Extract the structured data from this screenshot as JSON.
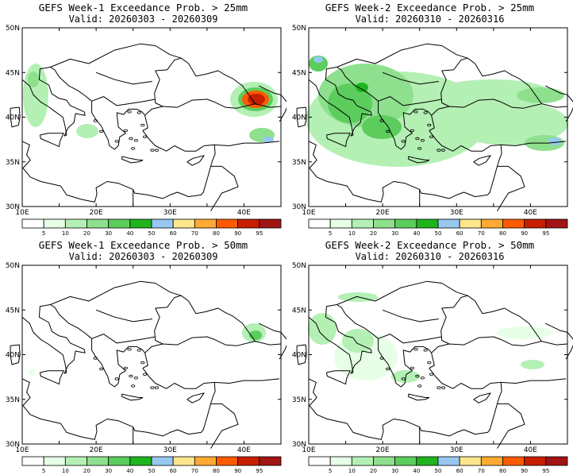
{
  "panels": [
    {
      "title": "GEFS Week-1 Exceedance Prob. > 25mm",
      "valid": "Valid: 20260303 - 20260309"
    },
    {
      "title": "GEFS Week-2 Exceedance Prob. > 25mm",
      "valid": "Valid: 20260310 - 20260316"
    },
    {
      "title": "GEFS Week-1 Exceedance Prob. > 50mm",
      "valid": "Valid: 20260303 - 20260309"
    },
    {
      "title": "GEFS Week-2 Exceedance Prob. > 50mm",
      "valid": "Valid: 20260310 - 20260316"
    }
  ],
  "axes": {
    "lon_ticks": [
      "10E",
      "20E",
      "30E",
      "40E"
    ],
    "lat_ticks": [
      "50N",
      "45N",
      "40N",
      "35N",
      "30N"
    ]
  },
  "colorbar": {
    "levels": [
      "5",
      "10",
      "20",
      "30",
      "40",
      "50",
      "60",
      "70",
      "80",
      "90",
      "95"
    ],
    "colors": [
      "#ffffff",
      "#e6ffe6",
      "#b4f0b4",
      "#8ee08e",
      "#5ccd5c",
      "#1eb41e",
      "#96c8f0",
      "#ffe68c",
      "#ffaa32",
      "#ff5a00",
      "#c81e00",
      "#a01414"
    ]
  }
}
